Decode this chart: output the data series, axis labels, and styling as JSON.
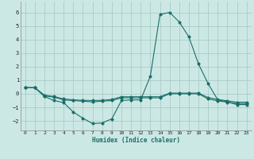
{
  "xlabel": "Humidex (Indice chaleur)",
  "bg_color": "#cce8e5",
  "grid_color": "#aaccc8",
  "line_color": "#1a6e68",
  "xlim": [
    -0.5,
    23.5
  ],
  "ylim": [
    -2.7,
    6.8
  ],
  "xticks": [
    0,
    1,
    2,
    3,
    4,
    5,
    6,
    7,
    8,
    9,
    10,
    11,
    12,
    13,
    14,
    15,
    16,
    17,
    18,
    19,
    20,
    21,
    22,
    23
  ],
  "yticks": [
    -2,
    -1,
    0,
    1,
    2,
    3,
    4,
    5,
    6
  ],
  "curve1_x": [
    0,
    1,
    2,
    3,
    4,
    5,
    6,
    7,
    8,
    9,
    10,
    11,
    12,
    13,
    14,
    15,
    16,
    17,
    18,
    19,
    20,
    21,
    22,
    23
  ],
  "curve1_y": [
    0.45,
    0.45,
    -0.2,
    -0.5,
    -0.65,
    -1.35,
    -1.8,
    -2.2,
    -2.15,
    -1.85,
    -0.5,
    -0.45,
    -0.45,
    1.3,
    5.85,
    6.0,
    5.3,
    4.2,
    2.2,
    0.75,
    -0.45,
    -0.6,
    -0.8,
    -0.8
  ],
  "curve2_x": [
    0,
    1,
    2,
    3,
    4,
    5,
    6,
    7,
    8,
    9,
    10,
    11,
    12,
    13,
    14,
    15,
    16,
    17,
    18,
    19,
    20,
    21,
    22,
    23
  ],
  "curve2_y": [
    0.45,
    0.45,
    -0.15,
    -0.25,
    -0.45,
    -0.5,
    -0.55,
    -0.6,
    -0.55,
    -0.5,
    -0.3,
    -0.3,
    -0.3,
    -0.3,
    -0.3,
    0.0,
    0.0,
    0.0,
    0.0,
    -0.38,
    -0.52,
    -0.62,
    -0.72,
    -0.72
  ],
  "curve3_x": [
    0,
    1,
    2,
    3,
    4,
    5,
    6,
    7,
    8,
    9,
    10,
    11,
    12,
    13,
    14,
    15,
    16,
    17,
    18,
    19,
    20,
    21,
    22,
    23
  ],
  "curve3_y": [
    0.45,
    0.45,
    -0.1,
    -0.2,
    -0.38,
    -0.45,
    -0.48,
    -0.5,
    -0.48,
    -0.42,
    -0.22,
    -0.22,
    -0.22,
    -0.22,
    -0.22,
    0.05,
    0.05,
    0.05,
    0.05,
    -0.28,
    -0.42,
    -0.52,
    -0.62,
    -0.62
  ]
}
